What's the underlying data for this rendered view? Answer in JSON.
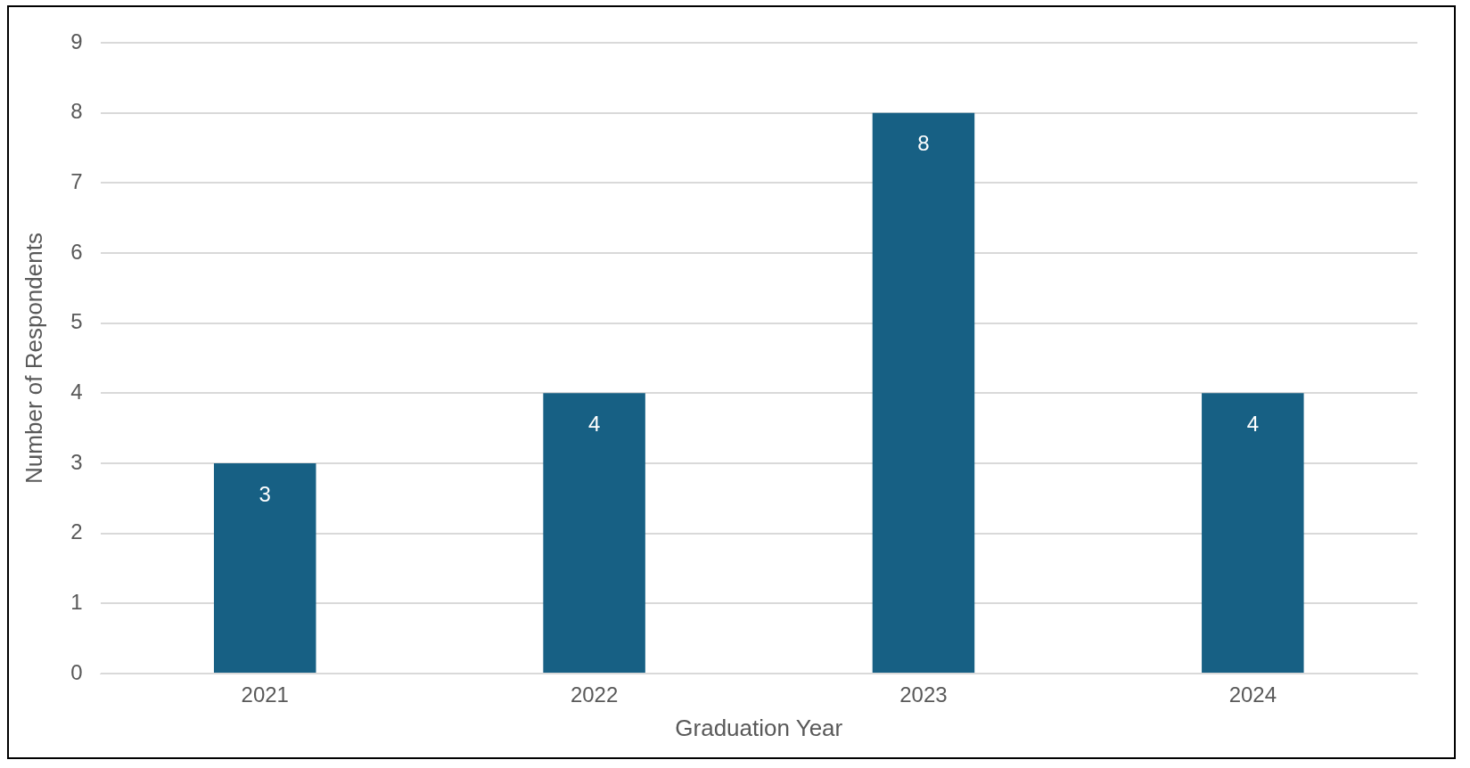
{
  "chart_data": {
    "type": "bar",
    "xlabel": "Graduation Year",
    "ylabel": "Number of Respondents",
    "categories": [
      "2021",
      "2022",
      "2023",
      "2024"
    ],
    "values": [
      3,
      4,
      8,
      4
    ],
    "color": "#176084",
    "ylim": [
      0,
      9
    ],
    "yticks": [
      0,
      1,
      2,
      3,
      4,
      5,
      6,
      7,
      8,
      9
    ],
    "grid": "y",
    "data_labels": true
  }
}
